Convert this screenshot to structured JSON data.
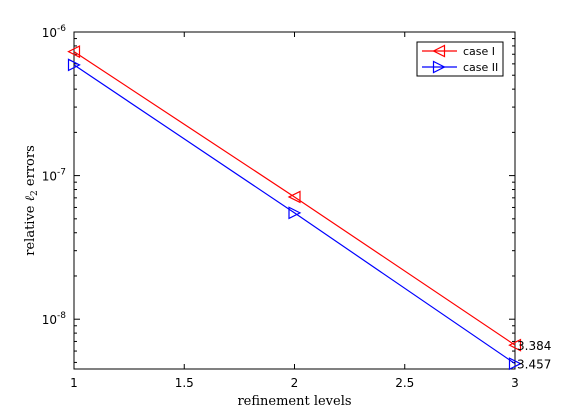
{
  "chart_data": {
    "type": "line",
    "x": [
      1,
      2,
      3
    ],
    "series": [
      {
        "name": "case I",
        "values": [
          7.3e-07,
          7.1e-08,
          6.6e-09
        ],
        "color": "#ff0000",
        "marker": "triangle-left",
        "end_label": "3.384"
      },
      {
        "name": "case II",
        "values": [
          5.9e-07,
          5.5e-08,
          4.9e-09
        ],
        "color": "#0000ff",
        "marker": "triangle-right",
        "end_label": "3.457"
      }
    ],
    "xlabel": "refinement levels",
    "ylabel": {
      "prefix": "relative ",
      "ell": "ℓ",
      "sub": "2",
      "suffix": " errors"
    },
    "xlim": [
      1,
      3
    ],
    "xticks": [
      1,
      1.5,
      2,
      2.5,
      3
    ],
    "xtick_labels": [
      "1",
      "1.5",
      "2",
      "2.5",
      "3"
    ],
    "ylim": [
      4.5e-09,
      1e-06
    ],
    "yscale": "log",
    "yticks": [
      {
        "value": 1e-08,
        "base": "10",
        "exp": "-8"
      },
      {
        "value": 1e-07,
        "base": "10",
        "exp": "-7"
      },
      {
        "value": 1e-06,
        "base": "10",
        "exp": "-6"
      }
    ],
    "grid": false,
    "legend_position": "top-right"
  }
}
